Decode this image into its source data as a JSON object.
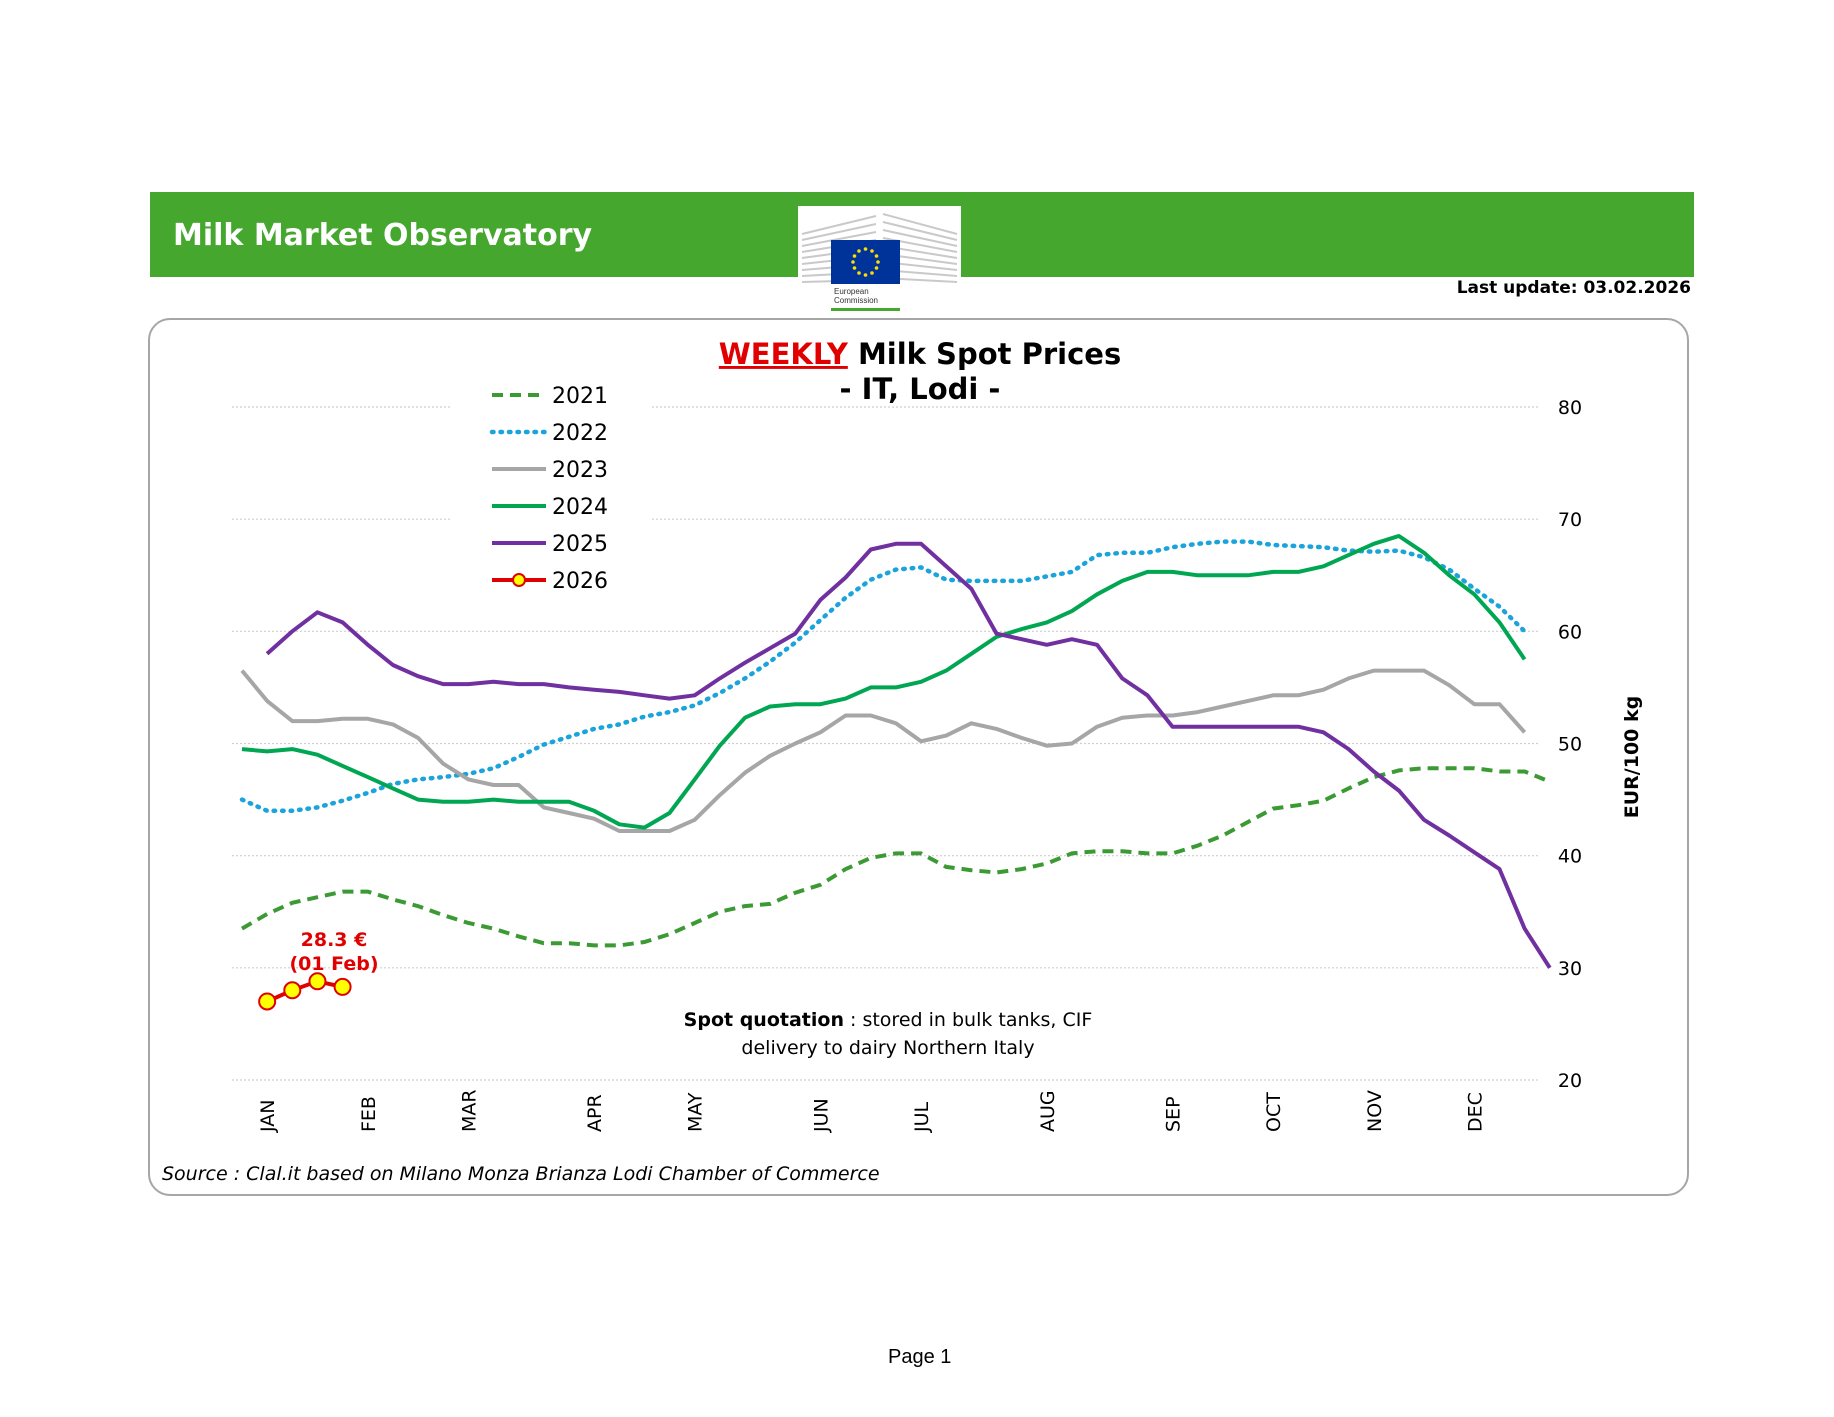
{
  "header": {
    "title": "Milk Market Observatory",
    "logo_text_1": "European",
    "logo_text_2": "Commission",
    "last_update": "Last update: 03.02.2026"
  },
  "footer": {
    "page": "Page 1"
  },
  "colors": {
    "banner": "#46a72f",
    "s2021": "#3c9a34",
    "s2022": "#1ba3dc",
    "s2023": "#a6a6a6",
    "s2024": "#00a651",
    "s2025": "#7030a0",
    "s2026": "#e00000",
    "marker": "#ffff00"
  },
  "chart_data": {
    "type": "line",
    "title_highlight": "WEEKLY",
    "title_rest": "Milk Spot Prices",
    "subtitle": "- IT, Lodi -",
    "ylabel": "EUR/100 kg",
    "ylim": [
      20,
      80
    ],
    "yticks": [
      20,
      30,
      40,
      50,
      60,
      70,
      80
    ],
    "grid": true,
    "legend_position": "top-left",
    "months": [
      "JAN",
      "FEB",
      "MAR",
      "APR",
      "MAY",
      "JUN",
      "JUL",
      "AUG",
      "SEP",
      "OCT",
      "NOV",
      "DEC"
    ],
    "month_weeks": [
      2,
      6,
      10,
      15,
      19,
      24,
      28,
      33,
      38,
      42,
      46,
      50
    ],
    "annotation": {
      "value": "28.3 €",
      "date": "(01 Feb)"
    },
    "note": {
      "bold": "Spot quotation",
      "rest": " : stored in bulk tanks, CIF",
      "line2": "delivery to dairy Northern Italy"
    },
    "source": "Source : Clal.it based on Milano Monza Brianza Lodi Chamber of Commerce",
    "series": [
      {
        "name": "2021",
        "style": "dashed",
        "values": [
          33.5,
          34.8,
          35.8,
          36.3,
          36.8,
          36.8,
          36.1,
          35.5,
          34.7,
          34.0,
          33.5,
          32.8,
          32.2,
          32.2,
          32.0,
          32.0,
          32.3,
          33.0,
          34.0,
          35.0,
          35.5,
          35.7,
          36.7,
          37.4,
          38.8,
          39.8,
          40.2,
          40.2,
          39.0,
          38.7,
          38.5,
          38.8,
          39.3,
          40.2,
          40.4,
          40.4,
          40.2,
          40.2,
          40.9,
          41.8,
          43.0,
          44.2,
          44.5,
          44.9,
          46.0,
          47.0,
          47.6,
          47.8,
          47.8,
          47.8,
          47.5,
          47.5,
          46.6
        ]
      },
      {
        "name": "2022",
        "style": "dotted",
        "values": [
          45.0,
          44.0,
          44.0,
          44.3,
          44.9,
          45.6,
          46.4,
          46.8,
          47.0,
          47.3,
          47.8,
          48.8,
          49.9,
          50.6,
          51.3,
          51.7,
          52.4,
          52.8,
          53.4,
          54.5,
          55.8,
          57.3,
          59.0,
          61.0,
          63.0,
          64.6,
          65.5,
          65.7,
          64.6,
          64.5,
          64.5,
          64.5,
          64.9,
          65.3,
          66.8,
          67.0,
          67.0,
          67.5,
          67.8,
          68.0,
          68.0,
          67.7,
          67.6,
          67.5,
          67.2,
          67.1,
          67.2,
          66.6,
          65.5,
          63.8,
          62.2,
          60.0
        ]
      },
      {
        "name": "2023",
        "style": "solid",
        "values": [
          56.5,
          53.8,
          52.0,
          52.0,
          52.2,
          52.2,
          51.7,
          50.5,
          48.2,
          46.8,
          46.3,
          46.3,
          44.3,
          43.8,
          43.3,
          42.2,
          42.2,
          42.2,
          43.2,
          45.4,
          47.4,
          48.9,
          50.0,
          51.0,
          52.5,
          52.5,
          51.8,
          50.2,
          50.7,
          51.8,
          51.3,
          50.5,
          49.8,
          50.0,
          51.5,
          52.3,
          52.5,
          52.5,
          52.8,
          53.3,
          53.8,
          54.3,
          54.3,
          54.8,
          55.8,
          56.5,
          56.5,
          56.5,
          55.2,
          53.5,
          53.5,
          51.0
        ]
      },
      {
        "name": "2024",
        "style": "solid",
        "values": [
          49.5,
          49.3,
          49.5,
          49.0,
          48.0,
          47.0,
          46.0,
          45.0,
          44.8,
          44.8,
          45.0,
          44.8,
          44.8,
          44.8,
          44.0,
          42.8,
          42.5,
          43.8,
          46.8,
          49.8,
          52.3,
          53.3,
          53.5,
          53.5,
          54.0,
          55.0,
          55.0,
          55.5,
          56.5,
          58.0,
          59.5,
          60.2,
          60.8,
          61.8,
          63.3,
          64.5,
          65.3,
          65.3,
          65.0,
          65.0,
          65.0,
          65.3,
          65.3,
          65.8,
          66.8,
          67.8,
          68.5,
          67.0,
          65.0,
          63.3,
          60.8,
          57.5
        ]
      },
      {
        "name": "2025",
        "style": "solid",
        "start_week": 2,
        "values": [
          58.0,
          60.0,
          61.7,
          60.8,
          58.8,
          57.0,
          56.0,
          55.3,
          55.3,
          55.5,
          55.3,
          55.3,
          55.0,
          54.8,
          54.6,
          54.3,
          54.0,
          54.3,
          55.8,
          57.2,
          58.5,
          59.8,
          62.8,
          64.8,
          67.3,
          67.8,
          67.8,
          65.8,
          63.8,
          59.8,
          59.3,
          58.8,
          59.3,
          58.8,
          55.8,
          54.3,
          51.5,
          51.5,
          51.5,
          51.5,
          51.5,
          51.5,
          51.0,
          49.5,
          47.5,
          45.8,
          43.2,
          41.8,
          40.3,
          38.8,
          33.5,
          30.0
        ]
      },
      {
        "name": "2026",
        "style": "marker",
        "start_week": 2,
        "values": [
          27.0,
          28.0,
          28.8,
          28.3
        ]
      }
    ]
  }
}
